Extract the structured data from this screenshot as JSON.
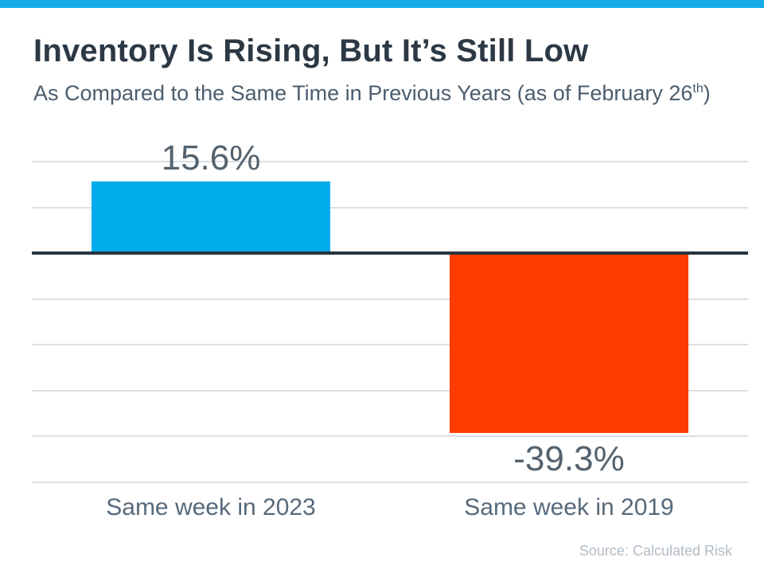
{
  "header": {
    "accent_color": "#18abe9",
    "subtitle_pre": "As Compared to the Same Time in Previous Years (as of February 26",
    "subtitle_sup": "th",
    "subtitle_post": ")"
  },
  "footer": {
    "source": "Source: Calculated Risk"
  },
  "chart_data": {
    "type": "bar",
    "title": "Inventory Is Rising, But It’s Still Low",
    "subtitle": "As Compared to the Same Time in Previous Years (as of February 26th)",
    "categories": [
      "Same week in 2023",
      "Same week in 2019"
    ],
    "values": [
      15.6,
      -39.3
    ],
    "value_labels": [
      "15.6%",
      "-39.3%"
    ],
    "bar_colors": [
      "#00acec",
      "#fe3b01"
    ],
    "label_color": "#53626e",
    "gridline_color": "#dcdee3",
    "zero_axis_color": "#273440",
    "ylim": [
      -50,
      20
    ],
    "gridline_step": 10,
    "grid": true,
    "legend": "none",
    "xlabel": "",
    "ylabel": "",
    "source": "Source: Calculated Risk"
  }
}
